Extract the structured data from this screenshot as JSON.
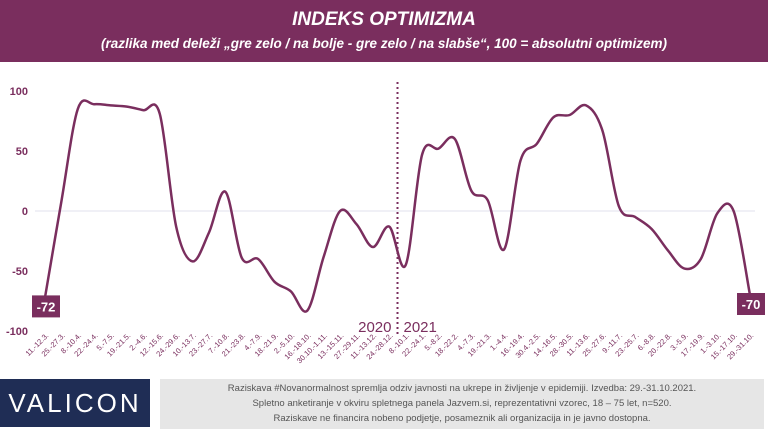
{
  "header": {
    "title": "INDEKS OPTIMIZMA",
    "subtitle": "(razlika med deleži „gre zelo / na bolje - gre zelo / na slabše“, 100 = absolutni optimizem)"
  },
  "chart_data": {
    "type": "line",
    "title": "INDEKS OPTIMIZMA",
    "ylim": [
      -100,
      100
    ],
    "yticks": [
      100,
      50,
      0,
      -50,
      -100
    ],
    "categories": [
      "11.-12.3.",
      "25.-27.3.",
      "8.-10.4.",
      "22.-24.4.",
      "5.-7.5.",
      "19.-21.5.",
      "2.-4.6.",
      "12.-15.6.",
      "24.-29.6.",
      "10.-13.7.",
      "23.-27.7.",
      "7.-10.8.",
      "21.-23.8.",
      "4.-7.9.",
      "18.-21.9.",
      "2.-5.10.",
      "16.-18.10.",
      "30.10.-1.11.",
      "13.-15.11.",
      "27.-29.11.",
      "11.-13.12.",
      "24.-28.12.",
      "8.-10.1.",
      "22.-24.1.",
      "5.-8.2.",
      "18.-22.2.",
      "4.-7.3.",
      "19.-21.3.",
      "1.-4.4.",
      "16.-19.4.",
      "30.4.-2.5.",
      "14.-16.5.",
      "28.-30.5.",
      "11.-13.6.",
      "25.-27.6.",
      "9.-11.7.",
      "23.-25.7.",
      "6.-8.8.",
      "20.-22.8.",
      "3.-5.9.",
      "17.-19.9.",
      "1.-3.10.",
      "15.-17.10.",
      "29.-31.10."
    ],
    "values": [
      -72,
      8,
      85,
      89,
      88,
      87,
      84,
      81,
      -13,
      -42,
      -18,
      16,
      -39,
      -40,
      -59,
      -67,
      -83,
      -38,
      0,
      -11,
      -30,
      -13,
      -45,
      47,
      52,
      60,
      17,
      9,
      -32,
      42,
      56,
      78,
      80,
      88,
      67,
      4,
      -5,
      -15,
      -33,
      -48,
      -40,
      -2,
      0,
      -70
    ],
    "year_labels": [
      "2020",
      "2021"
    ],
    "first_label": "-72",
    "last_label": "-70",
    "line_color": "#7a2e5e"
  },
  "logo": "VALICON",
  "footer": [
    "Raziskava #Novanormalnost spremlja odziv javnosti na ukrepe in življenje v epidemiji. Izvedba: 29.-31.10.2021.",
    "Spletno anketiranje v okviru spletnega panela Jazvem.si, reprezentativni vzorec, 18 – 75 let, n=520.",
    "Raziskave ne financira nobeno podjetje, posameznik ali organizacija in je javno dostopna."
  ]
}
